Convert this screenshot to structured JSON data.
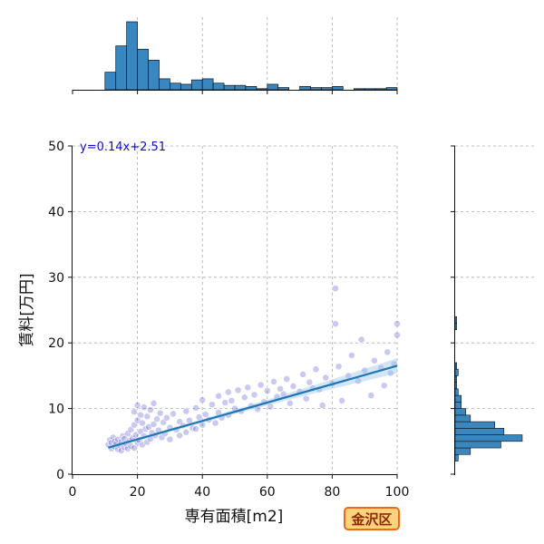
{
  "badge": {
    "text": "金沢区",
    "bg": "#ffd27f",
    "border": "#f06a10",
    "color": "#8a2a00"
  },
  "chart_data": {
    "type": "scatter",
    "title": "",
    "xlabel": "専有面積[m2]",
    "ylabel": "賃料[万円]",
    "xlim": [
      0,
      100
    ],
    "ylim": [
      0,
      50
    ],
    "xticks": [
      0,
      20,
      40,
      60,
      80,
      100
    ],
    "yticks": [
      0,
      10,
      20,
      30,
      40,
      50
    ],
    "grid": true,
    "regression": {
      "equation": "y=0.14x+2.51",
      "slope": 0.14,
      "intercept": 2.51,
      "x_range": [
        11,
        100
      ],
      "color": "#1f77b4"
    },
    "colors": {
      "point": "#5a5ad0",
      "line": "#1f77b4",
      "bar": "#3a87c0"
    },
    "points": [
      [
        11,
        4.5
      ],
      [
        11.5,
        5.2
      ],
      [
        12,
        4.8
      ],
      [
        12,
        3.9
      ],
      [
        12.5,
        5.6
      ],
      [
        13,
        4.2
      ],
      [
        13,
        5.0
      ],
      [
        13.5,
        4.6
      ],
      [
        14,
        3.8
      ],
      [
        14,
        5.3
      ],
      [
        14.5,
        4.4
      ],
      [
        15,
        4.9
      ],
      [
        15,
        3.6
      ],
      [
        15.5,
        5.8
      ],
      [
        16,
        4.1
      ],
      [
        16,
        5.4
      ],
      [
        16.5,
        4.7
      ],
      [
        17,
        3.9
      ],
      [
        17,
        6.2
      ],
      [
        17.5,
        5.1
      ],
      [
        18,
        4.3
      ],
      [
        18,
        6.8
      ],
      [
        18.5,
        5.5
      ],
      [
        19,
        4.0
      ],
      [
        19,
        7.5
      ],
      [
        19,
        9.5
      ],
      [
        19.5,
        6.0
      ],
      [
        20,
        4.8
      ],
      [
        20,
        8.2
      ],
      [
        20,
        10.5
      ],
      [
        20.5,
        5.2
      ],
      [
        21,
        6.5
      ],
      [
        21,
        9.0
      ],
      [
        21.5,
        4.5
      ],
      [
        21.5,
        7.8
      ],
      [
        22,
        5.8
      ],
      [
        22,
        10.2
      ],
      [
        22.5,
        6.9
      ],
      [
        23,
        4.9
      ],
      [
        23,
        8.8
      ],
      [
        23.5,
        7.2
      ],
      [
        24,
        5.4
      ],
      [
        24,
        9.8
      ],
      [
        24.5,
        6.3
      ],
      [
        25,
        7.6
      ],
      [
        25,
        10.8
      ],
      [
        25.5,
        5.9
      ],
      [
        26,
        8.4
      ],
      [
        26.5,
        6.7
      ],
      [
        27,
        9.3
      ],
      [
        27.5,
        5.6
      ],
      [
        28,
        7.9
      ],
      [
        28.5,
        6.2
      ],
      [
        29,
        8.6
      ],
      [
        30,
        7.1
      ],
      [
        30,
        5.3
      ],
      [
        31,
        9.2
      ],
      [
        32,
        6.8
      ],
      [
        33,
        8.0
      ],
      [
        33,
        5.9
      ],
      [
        34,
        7.4
      ],
      [
        35,
        9.6
      ],
      [
        35,
        6.4
      ],
      [
        36,
        8.2
      ],
      [
        37,
        7.0
      ],
      [
        38,
        10.1
      ],
      [
        38,
        6.9
      ],
      [
        39,
        8.7
      ],
      [
        40,
        11.3
      ],
      [
        40,
        7.5
      ],
      [
        41,
        9.1
      ],
      [
        42,
        8.3
      ],
      [
        43,
        10.6
      ],
      [
        44,
        7.8
      ],
      [
        45,
        11.9
      ],
      [
        45,
        9.4
      ],
      [
        46,
        8.6
      ],
      [
        47,
        10.9
      ],
      [
        48,
        12.5
      ],
      [
        48,
        9.0
      ],
      [
        49,
        11.2
      ],
      [
        50,
        10.0
      ],
      [
        51,
        12.8
      ],
      [
        52,
        9.6
      ],
      [
        53,
        11.7
      ],
      [
        54,
        13.2
      ],
      [
        55,
        10.4
      ],
      [
        56,
        12.1
      ],
      [
        57,
        9.9
      ],
      [
        58,
        13.6
      ],
      [
        59,
        11.0
      ],
      [
        60,
        12.7
      ],
      [
        61,
        10.3
      ],
      [
        62,
        14.1
      ],
      [
        63,
        11.8
      ],
      [
        64,
        13.0
      ],
      [
        65,
        12.2
      ],
      [
        66,
        14.5
      ],
      [
        67,
        10.8
      ],
      [
        68,
        13.4
      ],
      [
        70,
        12.6
      ],
      [
        71,
        15.2
      ],
      [
        72,
        11.5
      ],
      [
        73,
        14.0
      ],
      [
        74,
        13.1
      ],
      [
        75,
        16.0
      ],
      [
        76,
        12.9
      ],
      [
        77,
        10.5
      ],
      [
        78,
        14.7
      ],
      [
        80,
        13.8
      ],
      [
        81,
        28.3
      ],
      [
        81,
        22.9
      ],
      [
        82,
        16.4
      ],
      [
        83,
        11.2
      ],
      [
        85,
        15.0
      ],
      [
        86,
        18.1
      ],
      [
        88,
        14.2
      ],
      [
        89,
        20.5
      ],
      [
        90,
        15.8
      ],
      [
        92,
        12.0
      ],
      [
        93,
        17.3
      ],
      [
        95,
        16.2
      ],
      [
        96,
        13.5
      ],
      [
        97,
        18.6
      ],
      [
        98,
        15.4
      ],
      [
        100,
        22.9
      ],
      [
        100,
        21.2
      ],
      [
        99,
        16.8
      ]
    ],
    "top_histogram": {
      "bin_edges": [
        10,
        13.33,
        16.67,
        20,
        23.33,
        26.67,
        30,
        33.33,
        36.67,
        40,
        43.33,
        46.67,
        50,
        53.33,
        56.67,
        60,
        63.33,
        66.67,
        70,
        73.33,
        76.67,
        80,
        83.33,
        86.67,
        90,
        93.33,
        96.67,
        100
      ],
      "counts": [
        16,
        40,
        62,
        37,
        27,
        10,
        6,
        5,
        9,
        10,
        6,
        4,
        4,
        3,
        1,
        5,
        2,
        0,
        3,
        2,
        2,
        3,
        0,
        1,
        1,
        1,
        2
      ]
    },
    "right_histogram": {
      "bin_edges": [
        2,
        3,
        4,
        5,
        6,
        7,
        8,
        9,
        10,
        11,
        12,
        13,
        14,
        15,
        16,
        17,
        18,
        19,
        20,
        21,
        22,
        23,
        24,
        25,
        26,
        27,
        28,
        29
      ],
      "counts": [
        2,
        10,
        30,
        44,
        32,
        26,
        10,
        7,
        4,
        4,
        2,
        1,
        1,
        2,
        1,
        0,
        0,
        0,
        0,
        0,
        1,
        1,
        0,
        0,
        0,
        0,
        0
      ]
    }
  }
}
